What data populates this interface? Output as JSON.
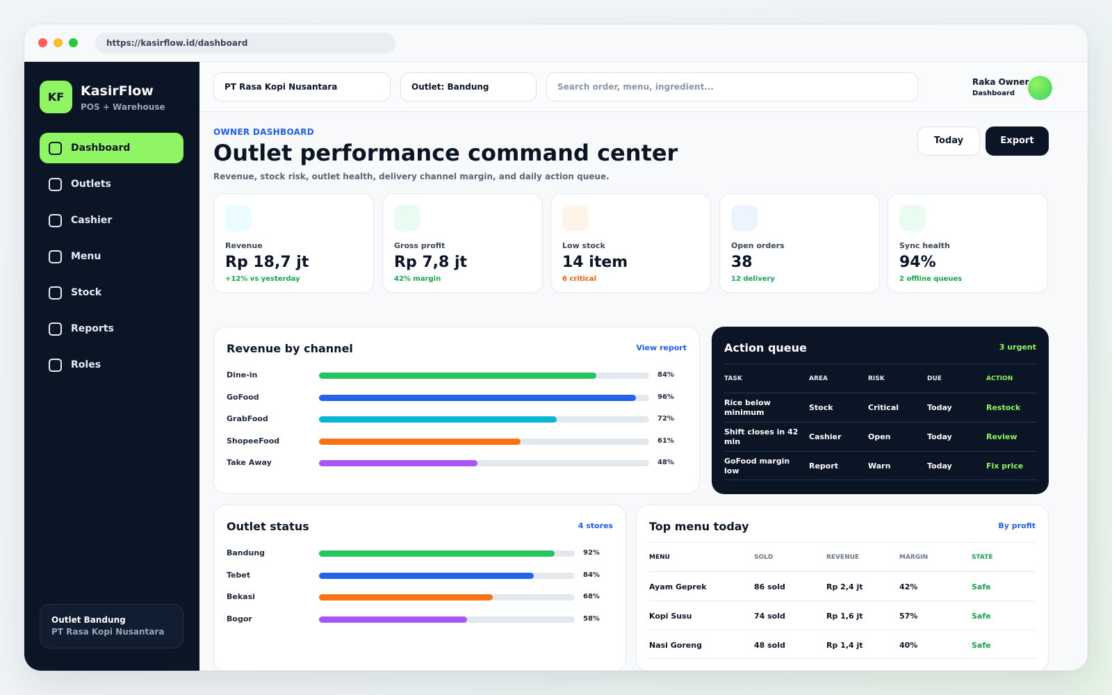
{
  "browser": {
    "url": "https://kasirflow.id/dashboard"
  },
  "brand": {
    "logo": "KF",
    "name": "KasirFlow",
    "tagline": "POS + Warehouse"
  },
  "sidebar": {
    "items": [
      {
        "label": "Dashboard",
        "icon": "square-icon"
      },
      {
        "label": "Outlets",
        "icon": "square-icon"
      },
      {
        "label": "Cashier",
        "icon": "square-icon"
      },
      {
        "label": "Menu",
        "icon": "square-icon"
      },
      {
        "label": "Stock",
        "icon": "square-icon"
      },
      {
        "label": "Reports",
        "icon": "square-icon"
      },
      {
        "label": "Roles",
        "icon": "square-icon"
      }
    ],
    "active_item": "Dashboard",
    "outlet_card": {
      "title": "Outlet Bandung",
      "subtitle": "PT Rasa Kopi Nusantara"
    }
  },
  "topbar": {
    "company": "PT Rasa Kopi Nusantara",
    "outlet": "Outlet: Bandung",
    "search_placeholder": "Search order, menu, ingredient...",
    "user_name": "Raka Owner",
    "user_role": "Dashboard"
  },
  "header": {
    "eyebrow": "OWNER DASHBOARD",
    "title": "Outlet performance command center",
    "subtitle": "Revenue, stock risk, outlet health, delivery channel margin, and daily action queue.",
    "today_label": "Today",
    "export_label": "Export"
  },
  "kpis": [
    {
      "label": "Revenue",
      "value": "Rp 18,7 jt",
      "note": "+12% vs yesterday",
      "note_color": "#16a34a",
      "icon_color": "#eafcff"
    },
    {
      "label": "Gross profit",
      "value": "Rp 7,8 jt",
      "note": "42% margin",
      "note_color": "#16a34a",
      "icon_color": "#eafbf1"
    },
    {
      "label": "Low stock",
      "value": "14 item",
      "note": "6 critical",
      "note_color": "#ea580c",
      "icon_color": "#fff4ea"
    },
    {
      "label": "Open orders",
      "value": "38",
      "note": "12 delivery",
      "note_color": "#16a34a",
      "icon_color": "#eef4ff"
    },
    {
      "label": "Sync health",
      "value": "94%",
      "note": "2 offline queues",
      "note_color": "#16a34a",
      "icon_color": "#eafbf1"
    }
  ],
  "revenue_by_channel": {
    "title": "Revenue by channel",
    "link": "View report",
    "rows": [
      {
        "label": "Dine-in",
        "pct": 84,
        "pct_label": "84%",
        "color": "#22c55e"
      },
      {
        "label": "GoFood",
        "pct": 96,
        "pct_label": "96%",
        "color": "#2563eb"
      },
      {
        "label": "GrabFood",
        "pct": 72,
        "pct_label": "72%",
        "color": "#06b6d4"
      },
      {
        "label": "ShopeeFood",
        "pct": 61,
        "pct_label": "61%",
        "color": "#f97316"
      },
      {
        "label": "Take Away",
        "pct": 48,
        "pct_label": "48%",
        "color": "#a855f7"
      }
    ]
  },
  "action_queue": {
    "title": "Action queue",
    "badge": "3 urgent",
    "headers": [
      "TASK",
      "AREA",
      "RISK",
      "DUE",
      "ACTION"
    ],
    "rows": [
      {
        "task": "Rice below minimum",
        "area": "Stock",
        "risk": "Critical",
        "due": "Today",
        "action": "Restock"
      },
      {
        "task": "Shift closes in 42 min",
        "area": "Cashier",
        "risk": "Open",
        "due": "Today",
        "action": "Review"
      },
      {
        "task": "GoFood margin low",
        "area": "Report",
        "risk": "Warn",
        "due": "Today",
        "action": "Fix price"
      }
    ],
    "accent": "#8ff562"
  },
  "outlet_status": {
    "title": "Outlet status",
    "link": "4 stores",
    "rows": [
      {
        "label": "Bandung",
        "pct": 92,
        "pct_label": "92%",
        "color": "#22c55e"
      },
      {
        "label": "Tebet",
        "pct": 84,
        "pct_label": "84%",
        "color": "#2563eb"
      },
      {
        "label": "Bekasi",
        "pct": 68,
        "pct_label": "68%",
        "color": "#f97316"
      },
      {
        "label": "Bogor",
        "pct": 58,
        "pct_label": "58%",
        "color": "#a855f7"
      }
    ]
  },
  "top_menu": {
    "title": "Top menu today",
    "link": "By profit",
    "headers": [
      "MENU",
      "SOLD",
      "REVENUE",
      "MARGIN",
      "STATE"
    ],
    "rows": [
      {
        "menu": "Ayam Geprek",
        "sold": "86 sold",
        "revenue": "Rp 2,4 jt",
        "margin": "42%",
        "state": "Safe"
      },
      {
        "menu": "Kopi Susu",
        "sold": "74 sold",
        "revenue": "Rp 1,6 jt",
        "margin": "57%",
        "state": "Safe"
      },
      {
        "menu": "Nasi Goreng",
        "sold": "48 sold",
        "revenue": "Rp 1,4 jt",
        "margin": "40%",
        "state": "Safe"
      }
    ],
    "state_color": "#16a34a"
  }
}
